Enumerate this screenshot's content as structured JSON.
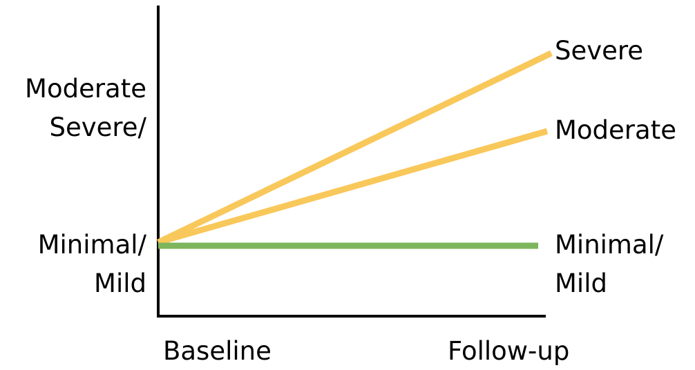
{
  "y_axis_labels": {
    "upper_line1": "Moderate",
    "upper_line2": "Severe/",
    "lower_line1": "Minimal/",
    "lower_line2": "Mild"
  },
  "x_axis_labels": {
    "start": "Baseline",
    "end": "Follow-up"
  },
  "trajectories": [
    {
      "label_lines": [
        "Severe"
      ],
      "color": "#F9C85B"
    },
    {
      "label_lines": [
        "Moderate"
      ],
      "color": "#F9C85B"
    },
    {
      "label_lines": [
        "Minimal/",
        "Mild"
      ],
      "color": "#7DB55C"
    }
  ],
  "colors": {
    "axis": "#000000",
    "worsening": "#F9C85B",
    "stable": "#7DB55C"
  }
}
